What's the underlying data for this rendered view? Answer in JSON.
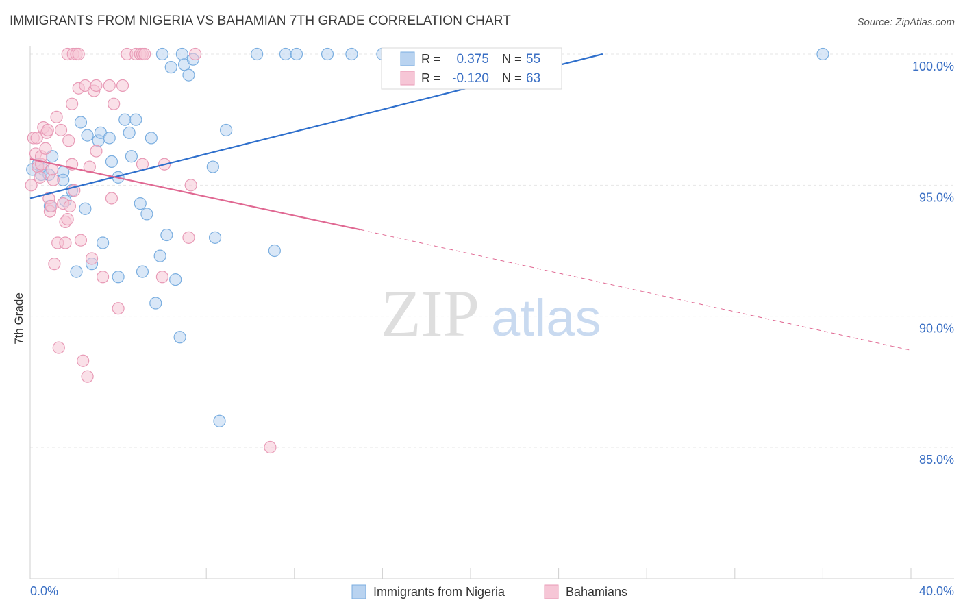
{
  "chart_data": {
    "type": "scatter",
    "title": "IMMIGRANTS FROM NIGERIA VS BAHAMIAN 7TH GRADE CORRELATION CHART",
    "source": "Source: ZipAtlas.com",
    "xlabel": "",
    "ylabel": "7th Grade",
    "xlim": [
      0,
      40
    ],
    "ylim": [
      80.5,
      100.6
    ],
    "x_tick_labels": [
      "0.0%",
      "40.0%"
    ],
    "y_ticks": [
      85,
      90,
      95,
      100
    ],
    "y_tick_labels": [
      "85.0%",
      "90.0%",
      "95.0%",
      "100.0%"
    ],
    "grid": true,
    "watermark": {
      "part1": "ZIP",
      "part2": "atlas"
    },
    "legend_stats": [
      {
        "r_label": "R =",
        "r_value": "0.375",
        "n_label": "N =",
        "n_value": "55"
      },
      {
        "r_label": "R =",
        "r_value": "-0.120",
        "n_label": "N =",
        "n_value": "63"
      }
    ],
    "series": [
      {
        "name": "Immigrants from Nigeria",
        "color": "#7aaee0",
        "fill": "#b9d3f0",
        "trend_color": "#2e6fcc",
        "trend": {
          "x0": 0.0,
          "y0": 94.5,
          "x1": 26.0,
          "y1": 100.0,
          "dash_to": null
        },
        "points": [
          [
            0.1,
            95.6
          ],
          [
            0.35,
            95.8
          ],
          [
            0.5,
            95.4
          ],
          [
            0.6,
            95.6
          ],
          [
            0.85,
            95.4
          ],
          [
            1.0,
            96.1
          ],
          [
            0.9,
            94.2
          ],
          [
            1.5,
            95.5
          ],
          [
            1.5,
            95.2
          ],
          [
            1.6,
            94.4
          ],
          [
            1.9,
            94.8
          ],
          [
            2.1,
            91.7
          ],
          [
            2.3,
            97.4
          ],
          [
            2.5,
            94.1
          ],
          [
            2.6,
            96.9
          ],
          [
            2.8,
            92.0
          ],
          [
            3.1,
            96.7
          ],
          [
            3.2,
            97.0
          ],
          [
            3.3,
            92.8
          ],
          [
            3.6,
            96.8
          ],
          [
            3.7,
            95.9
          ],
          [
            4.0,
            95.3
          ],
          [
            4.0,
            91.5
          ],
          [
            4.3,
            97.5
          ],
          [
            4.5,
            97.0
          ],
          [
            4.6,
            96.1
          ],
          [
            4.8,
            97.5
          ],
          [
            5.0,
            94.3
          ],
          [
            5.1,
            91.7
          ],
          [
            5.3,
            93.9
          ],
          [
            5.5,
            96.8
          ],
          [
            5.7,
            90.5
          ],
          [
            5.9,
            92.3
          ],
          [
            6.0,
            100.0
          ],
          [
            6.2,
            93.1
          ],
          [
            6.4,
            99.5
          ],
          [
            6.6,
            91.4
          ],
          [
            6.8,
            89.2
          ],
          [
            6.9,
            100.0
          ],
          [
            7.0,
            99.6
          ],
          [
            7.2,
            99.2
          ],
          [
            7.4,
            99.8
          ],
          [
            8.3,
            95.7
          ],
          [
            8.4,
            93.0
          ],
          [
            8.6,
            86.0
          ],
          [
            8.9,
            97.1
          ],
          [
            10.3,
            100.0
          ],
          [
            11.1,
            92.5
          ],
          [
            11.6,
            100.0
          ],
          [
            12.1,
            100.0
          ],
          [
            13.5,
            100.0
          ],
          [
            14.6,
            100.0
          ],
          [
            16.0,
            100.0
          ],
          [
            16.6,
            100.0
          ],
          [
            36.0,
            100.0
          ]
        ]
      },
      {
        "name": "Bahamians",
        "color": "#e89ab6",
        "fill": "#f6c6d6",
        "trend_color": "#e06892",
        "trend": {
          "x0": 0.0,
          "y0": 96.0,
          "x1": 15.0,
          "y1": 93.3,
          "dash_to": {
            "x": 40.0,
            "y": 88.7
          }
        },
        "points": [
          [
            0.05,
            95.0
          ],
          [
            0.15,
            96.8
          ],
          [
            0.25,
            96.2
          ],
          [
            0.3,
            96.8
          ],
          [
            0.35,
            95.7
          ],
          [
            0.45,
            95.3
          ],
          [
            0.5,
            95.8
          ],
          [
            0.5,
            96.1
          ],
          [
            0.6,
            97.2
          ],
          [
            0.7,
            96.4
          ],
          [
            0.75,
            97.0
          ],
          [
            0.8,
            97.1
          ],
          [
            0.85,
            94.5
          ],
          [
            0.9,
            94.0
          ],
          [
            0.95,
            94.2
          ],
          [
            1.0,
            95.6
          ],
          [
            1.05,
            95.2
          ],
          [
            1.1,
            92.0
          ],
          [
            1.2,
            97.6
          ],
          [
            1.25,
            92.8
          ],
          [
            1.3,
            88.8
          ],
          [
            1.4,
            97.1
          ],
          [
            1.5,
            94.3
          ],
          [
            1.6,
            92.8
          ],
          [
            1.6,
            93.6
          ],
          [
            1.7,
            93.7
          ],
          [
            1.7,
            100.0
          ],
          [
            1.75,
            96.7
          ],
          [
            1.8,
            94.2
          ],
          [
            1.9,
            95.8
          ],
          [
            1.9,
            98.1
          ],
          [
            1.95,
            100.0
          ],
          [
            2.0,
            94.8
          ],
          [
            2.1,
            100.0
          ],
          [
            2.2,
            98.7
          ],
          [
            2.2,
            100.0
          ],
          [
            2.3,
            92.9
          ],
          [
            2.4,
            88.3
          ],
          [
            2.5,
            98.8
          ],
          [
            2.6,
            87.7
          ],
          [
            2.7,
            95.7
          ],
          [
            2.8,
            92.2
          ],
          [
            2.9,
            98.6
          ],
          [
            3.0,
            98.8
          ],
          [
            3.0,
            96.3
          ],
          [
            3.3,
            91.5
          ],
          [
            3.6,
            98.8
          ],
          [
            3.7,
            94.5
          ],
          [
            3.8,
            98.1
          ],
          [
            4.0,
            90.3
          ],
          [
            4.2,
            98.8
          ],
          [
            4.4,
            100.0
          ],
          [
            4.8,
            100.0
          ],
          [
            5.0,
            100.0
          ],
          [
            5.1,
            100.0
          ],
          [
            5.1,
            95.8
          ],
          [
            5.2,
            100.0
          ],
          [
            6.0,
            91.5
          ],
          [
            6.1,
            95.8
          ],
          [
            7.2,
            93.0
          ],
          [
            7.3,
            95.0
          ],
          [
            7.5,
            100.0
          ],
          [
            10.9,
            85.0
          ]
        ]
      }
    ]
  }
}
